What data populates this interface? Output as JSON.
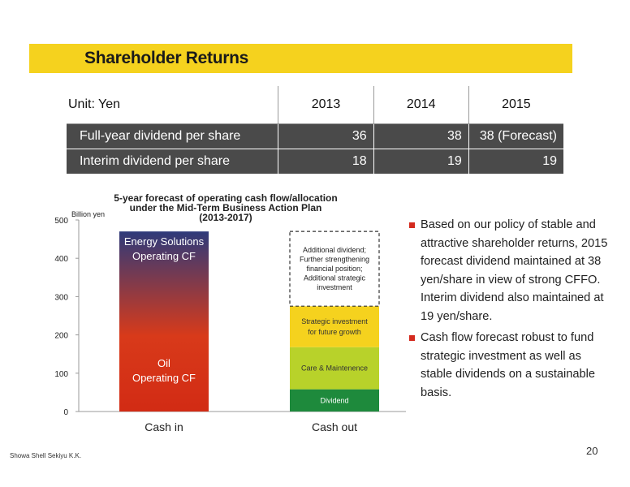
{
  "slide": {
    "title": "Shareholder Returns",
    "footer": "Showa Shell Sekiyu K.K.",
    "page_number": "20"
  },
  "dividend_table": {
    "unit_label": "Unit: Yen",
    "years": [
      "2013",
      "2014",
      "2015"
    ],
    "rows": [
      {
        "label": "Full-year dividend per share",
        "values": [
          "36",
          "38",
          "38 (Forecast)"
        ]
      },
      {
        "label": "Interim dividend per share",
        "values": [
          "18",
          "19",
          "19"
        ]
      }
    ]
  },
  "chart_data": {
    "type": "bar",
    "title": "5-year forecast of operating cash flow/allocation under the Mid-Term Business Action Plan (2013-2017)",
    "title_lines": [
      "5-year forecast of operating cash flow/allocation",
      "under the Mid-Term Business Action Plan",
      "(2013-2017)"
    ],
    "ylabel": "Billion yen",
    "ylim": [
      0,
      500
    ],
    "yticks": [
      "0",
      "100",
      "200",
      "300",
      "400",
      "500"
    ],
    "grid": false,
    "categories": [
      "Cash in",
      "Cash out"
    ],
    "cash_in": {
      "total": 470,
      "segments": [
        {
          "label_lines": [
            "Oil",
            "Operating CF"
          ],
          "color_bottom": "#d22b14",
          "color_top": "#d83a1a",
          "value": 200
        },
        {
          "label_lines": [
            "Energy Solutions",
            "Operating CF"
          ],
          "color_bottom": "#d83a1a",
          "color_top": "#2e3a7a",
          "value": 270
        }
      ]
    },
    "cash_out": {
      "segments": [
        {
          "label": "Dividend",
          "value": 58,
          "color": "#1e8a3c",
          "text_color": "#ffffff"
        },
        {
          "label": "Care & Maintenence",
          "value": 110,
          "color": "#b8d22a",
          "text_color": "#333333"
        },
        {
          "label_lines": [
            "Strategic investment",
            "for future growth"
          ],
          "value": 107,
          "color": "#f5d21e",
          "text_color": "#333333"
        },
        {
          "label_lines": [
            "Additional dividend;",
            "Further strengthening",
            "financial position;",
            "Additional strategic",
            "investment"
          ],
          "value": 195,
          "color": "#ffffff",
          "text_color": "#222222",
          "dashed": true
        }
      ]
    }
  },
  "bullets": [
    "Based on our policy of stable and attractive shareholder returns, 2015 forecast dividend maintained at 38 yen/share in view of strong CFFO. Interim dividend also maintained at 19 yen/share.",
    "Cash flow forecast robust to fund strategic investment as well as stable dividends on a sustainable basis."
  ],
  "colors": {
    "title_bar": "#f5d21e",
    "table_dark_row": "#4a4a4a",
    "bullet": "#d42a1e"
  }
}
